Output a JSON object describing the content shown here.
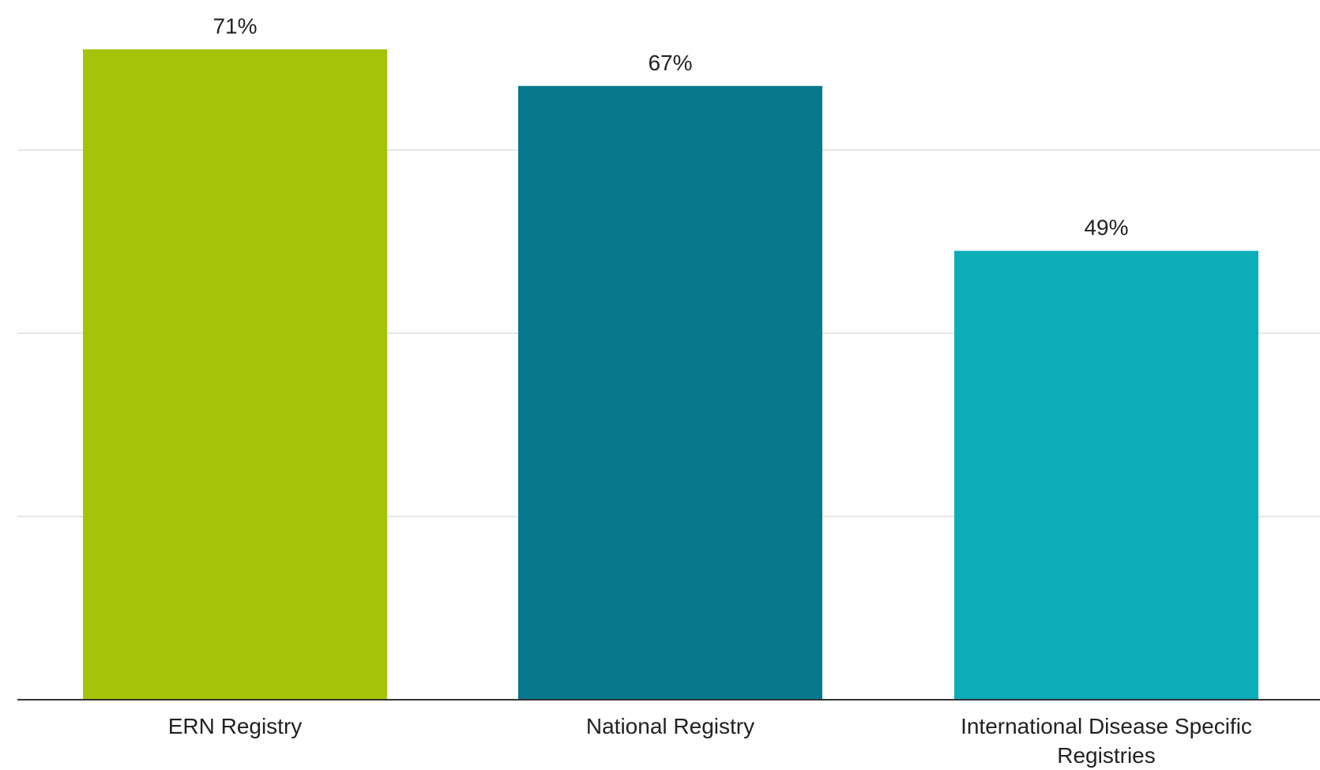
{
  "chart_data": {
    "type": "bar",
    "categories": [
      "ERN Registry",
      "National Registry",
      "International Disease Specific Registries"
    ],
    "category_lines": [
      [
        "ERN Registry"
      ],
      [
        "National Registry"
      ],
      [
        "International Disease Specific",
        "Registries"
      ]
    ],
    "values": [
      71,
      67,
      49
    ],
    "value_labels": [
      "71%",
      "67%",
      "49%"
    ],
    "colors": [
      "#a6c30b",
      "#06798c",
      "#0badb9"
    ],
    "title": "",
    "xlabel": "",
    "ylabel": "",
    "ylim": [
      0,
      76
    ],
    "gridlines": [
      20,
      40,
      60
    ],
    "grid": true,
    "legend": "none"
  }
}
